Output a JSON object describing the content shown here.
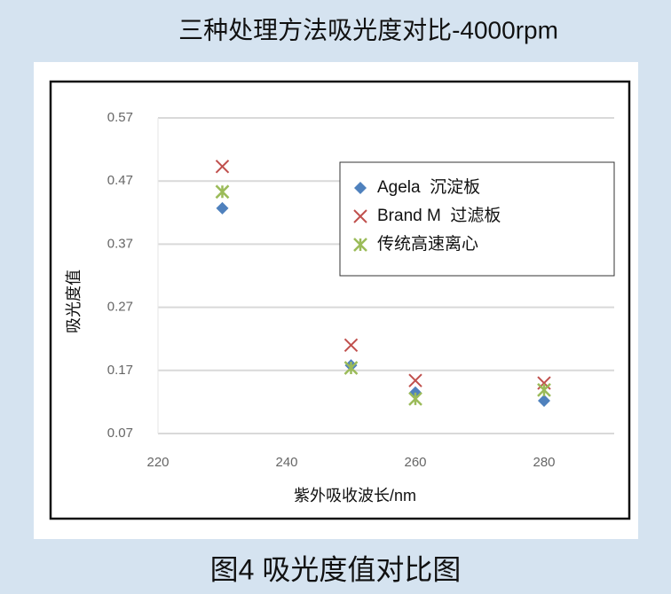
{
  "caption": "图4 吸光度值对比图",
  "chart_data": {
    "type": "scatter",
    "title": "三种处理方法吸光度对比-4000rpm",
    "xlabel": "紫外吸收波长/nm",
    "ylabel": "吸光度值",
    "xlim": [
      220,
      290
    ],
    "ylim": [
      0.07,
      0.57
    ],
    "xticks": [
      220,
      240,
      260,
      280
    ],
    "yticks": [
      0.07,
      0.17,
      0.27,
      0.37,
      0.47,
      0.57
    ],
    "grid": true,
    "legend": "upper right",
    "series": [
      {
        "name": "Agela  沉淀板",
        "color": "#4f81bd",
        "marker": "diamond",
        "x": [
          230,
          250,
          260,
          280
        ],
        "values": [
          0.427,
          0.178,
          0.135,
          0.122
        ]
      },
      {
        "name": "Brand M  过滤板",
        "color": "#c0504d",
        "marker": "x",
        "x": [
          230,
          250,
          260,
          280
        ],
        "values": [
          0.493,
          0.21,
          0.154,
          0.15
        ]
      },
      {
        "name": "传统高速离心",
        "color": "#9bbb59",
        "marker": "asterisk",
        "x": [
          230,
          250,
          260,
          280
        ],
        "values": [
          0.453,
          0.174,
          0.125,
          0.139
        ]
      }
    ]
  }
}
